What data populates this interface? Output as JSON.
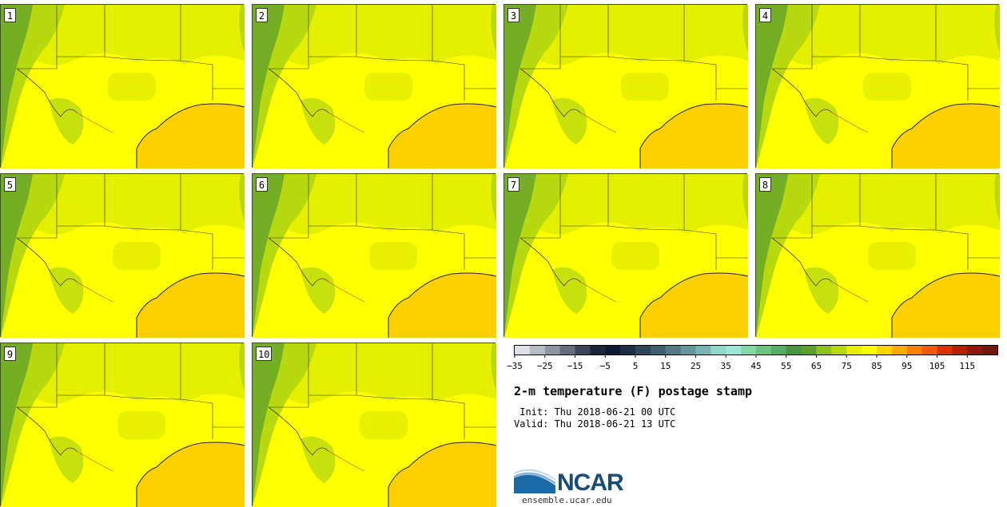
{
  "title": "2-m temperature (F) postage stamp",
  "init": " Init: Thu 2018-06-21 00 UTC",
  "valid": "Valid: Thu 2018-06-21 13 UTC",
  "logo_text": "NCAR",
  "url": "ensemble.ucar.edu",
  "members": [
    "1",
    "2",
    "3",
    "4",
    "5",
    "6",
    "7",
    "8",
    "9",
    "10"
  ],
  "colorbar": {
    "colors": [
      "#dfe1e8",
      "#b7bbc4",
      "#8e94a1",
      "#646c7c",
      "#3c4459",
      "#1d2639",
      "#0d1a35",
      "#1d2e45",
      "#2d4658",
      "#3f5f6e",
      "#517a85",
      "#66969d",
      "#79b3b3",
      "#8fd6cb",
      "#9de7d6",
      "#86d9a5",
      "#6cc483",
      "#56ad63",
      "#47963f",
      "#5c9f2c",
      "#8fc01d",
      "#b8d910",
      "#e4f000",
      "#ffff00",
      "#ffd400",
      "#ffaa00",
      "#ff7f00",
      "#f05a0a",
      "#d93300",
      "#b32200",
      "#8d1a0c",
      "#6b1a0f"
    ],
    "ticks": [
      "−35",
      "−25",
      "−15",
      "−5",
      "5",
      "15",
      "25",
      "35",
      "45",
      "55",
      "65",
      "75",
      "85",
      "95",
      "105",
      "115"
    ]
  },
  "legend_colors": {
    "ocean": "#ffd000",
    "land_warm": "#ffff00",
    "land_mild": "#e4f000",
    "land_cool": "#b8d910",
    "terrain": "#5c9f2c",
    "border": "#333333"
  }
}
